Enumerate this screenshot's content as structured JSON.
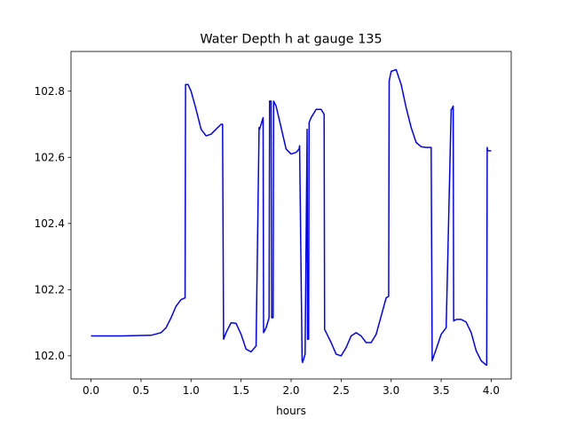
{
  "chart_data": {
    "type": "line",
    "title": "Water Depth h at gauge 135",
    "xlabel": "hours",
    "ylabel": "",
    "xlim": [
      -0.2,
      4.2
    ],
    "ylim": [
      101.93,
      102.92
    ],
    "x_ticks": [
      0.0,
      0.5,
      1.0,
      1.5,
      2.0,
      2.5,
      3.0,
      3.5,
      4.0
    ],
    "x_tick_labels": [
      "0.0",
      "0.5",
      "1.0",
      "1.5",
      "2.0",
      "2.5",
      "3.0",
      "3.5",
      "4.0"
    ],
    "y_ticks": [
      102.0,
      102.2,
      102.4,
      102.6,
      102.8
    ],
    "y_tick_labels": [
      "102.0",
      "102.2",
      "102.4",
      "102.6",
      "102.8"
    ],
    "grid": false,
    "legend": "none",
    "series": [
      {
        "color": "#0000ff",
        "x": [
          0.0,
          0.3,
          0.6,
          0.7,
          0.75,
          0.8,
          0.85,
          0.9,
          0.94,
          0.945,
          0.97,
          1.0,
          1.05,
          1.1,
          1.15,
          1.2,
          1.25,
          1.3,
          1.315,
          1.325,
          1.35,
          1.4,
          1.45,
          1.5,
          1.55,
          1.6,
          1.65,
          1.68,
          1.685,
          1.72,
          1.725,
          1.75,
          1.78,
          1.785,
          1.8,
          1.805,
          1.82,
          1.825,
          1.85,
          1.9,
          1.95,
          2.0,
          2.05,
          2.08,
          2.085,
          2.11,
          2.115,
          2.14,
          2.16,
          2.165,
          2.175,
          2.18,
          2.2,
          2.25,
          2.3,
          2.33,
          2.335,
          2.4,
          2.45,
          2.5,
          2.55,
          2.6,
          2.65,
          2.7,
          2.75,
          2.8,
          2.85,
          2.9,
          2.95,
          2.975,
          2.98,
          3.0,
          3.05,
          3.1,
          3.15,
          3.2,
          3.25,
          3.3,
          3.35,
          3.4,
          3.41,
          3.415,
          3.45,
          3.5,
          3.55,
          3.6,
          3.605,
          3.62,
          3.625,
          3.65,
          3.7,
          3.75,
          3.8,
          3.85,
          3.9,
          3.95,
          3.955,
          3.96,
          3.965,
          3.97,
          4.0
        ],
        "y": [
          102.06,
          102.06,
          102.062,
          102.07,
          102.085,
          102.115,
          102.15,
          102.17,
          102.175,
          102.82,
          102.82,
          102.8,
          102.745,
          102.685,
          102.665,
          102.67,
          102.685,
          102.7,
          102.7,
          102.05,
          102.07,
          102.1,
          102.098,
          102.065,
          102.02,
          102.012,
          102.03,
          102.69,
          102.685,
          102.72,
          102.07,
          102.085,
          102.115,
          102.77,
          102.77,
          102.115,
          102.115,
          102.77,
          102.755,
          102.69,
          102.625,
          102.61,
          102.615,
          102.625,
          102.635,
          101.985,
          101.98,
          102.005,
          102.685,
          102.05,
          102.05,
          102.705,
          102.72,
          102.745,
          102.745,
          102.73,
          102.08,
          102.04,
          102.005,
          102.0,
          102.025,
          102.06,
          102.07,
          102.06,
          102.04,
          102.04,
          102.065,
          102.12,
          102.175,
          102.18,
          102.83,
          102.86,
          102.865,
          102.82,
          102.75,
          102.69,
          102.645,
          102.632,
          102.63,
          102.63,
          101.985,
          101.99,
          102.02,
          102.065,
          102.085,
          102.745,
          102.745,
          102.755,
          102.105,
          102.11,
          102.11,
          102.102,
          102.07,
          102.015,
          101.985,
          101.972,
          101.972,
          102.63,
          102.62,
          102.62,
          102.62
        ]
      }
    ]
  }
}
